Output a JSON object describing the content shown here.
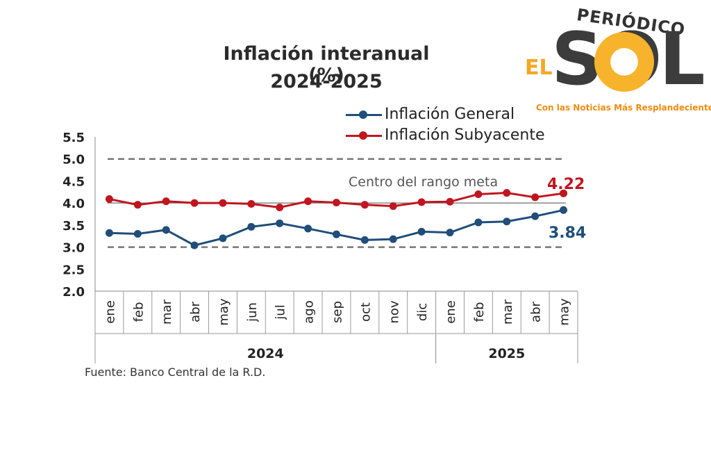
{
  "chart_data": {
    "type": "line",
    "title": "Inflación interanual (%)",
    "subtitle": "2024-2025",
    "categories": [
      "ene",
      "feb",
      "mar",
      "abr",
      "may",
      "jun",
      "jul",
      "ago",
      "sep",
      "oct",
      "nov",
      "dic",
      "ene",
      "feb",
      "mar",
      "abr",
      "may"
    ],
    "year_groups": [
      {
        "label": "2024",
        "start": 0,
        "end": 11
      },
      {
        "label": "2025",
        "start": 12,
        "end": 16
      }
    ],
    "series": [
      {
        "name": "Inflación General",
        "color": "#1f4e79",
        "values": [
          3.32,
          3.3,
          3.39,
          3.04,
          3.2,
          3.46,
          3.54,
          3.42,
          3.29,
          3.16,
          3.18,
          3.35,
          3.33,
          3.56,
          3.58,
          3.7,
          3.84
        ]
      },
      {
        "name": "Inflación Subyacente",
        "color": "#c0161f",
        "values": [
          4.09,
          3.96,
          4.04,
          4.0,
          4.0,
          3.98,
          3.9,
          4.04,
          4.01,
          3.96,
          3.93,
          4.02,
          4.03,
          4.2,
          4.23,
          4.13,
          4.22
        ]
      }
    ],
    "ylim": [
      2.0,
      5.5
    ],
    "yticks": [
      "5.5",
      "5.0",
      "4.5",
      "4.0",
      "3.5",
      "3.0",
      "2.5",
      "2.0"
    ],
    "reference_lines": [
      {
        "value": 5.0,
        "style": "dashed"
      },
      {
        "value": 4.0,
        "style": "solid"
      },
      {
        "value": 3.0,
        "style": "dashed"
      }
    ],
    "annotations": {
      "target_label": "Centro del rango meta",
      "last_general": "3.84",
      "last_subyacente": "4.22"
    },
    "legend_position": "top",
    "grid": false
  },
  "source": "Fuente: Banco Central de la R.D.",
  "logo": {
    "pre": "PERIÓDICO",
    "el": "EL",
    "name": "SOL",
    "tagline": "Con las Noticias Más Resplandecientes",
    "accent": "#f5a623"
  }
}
